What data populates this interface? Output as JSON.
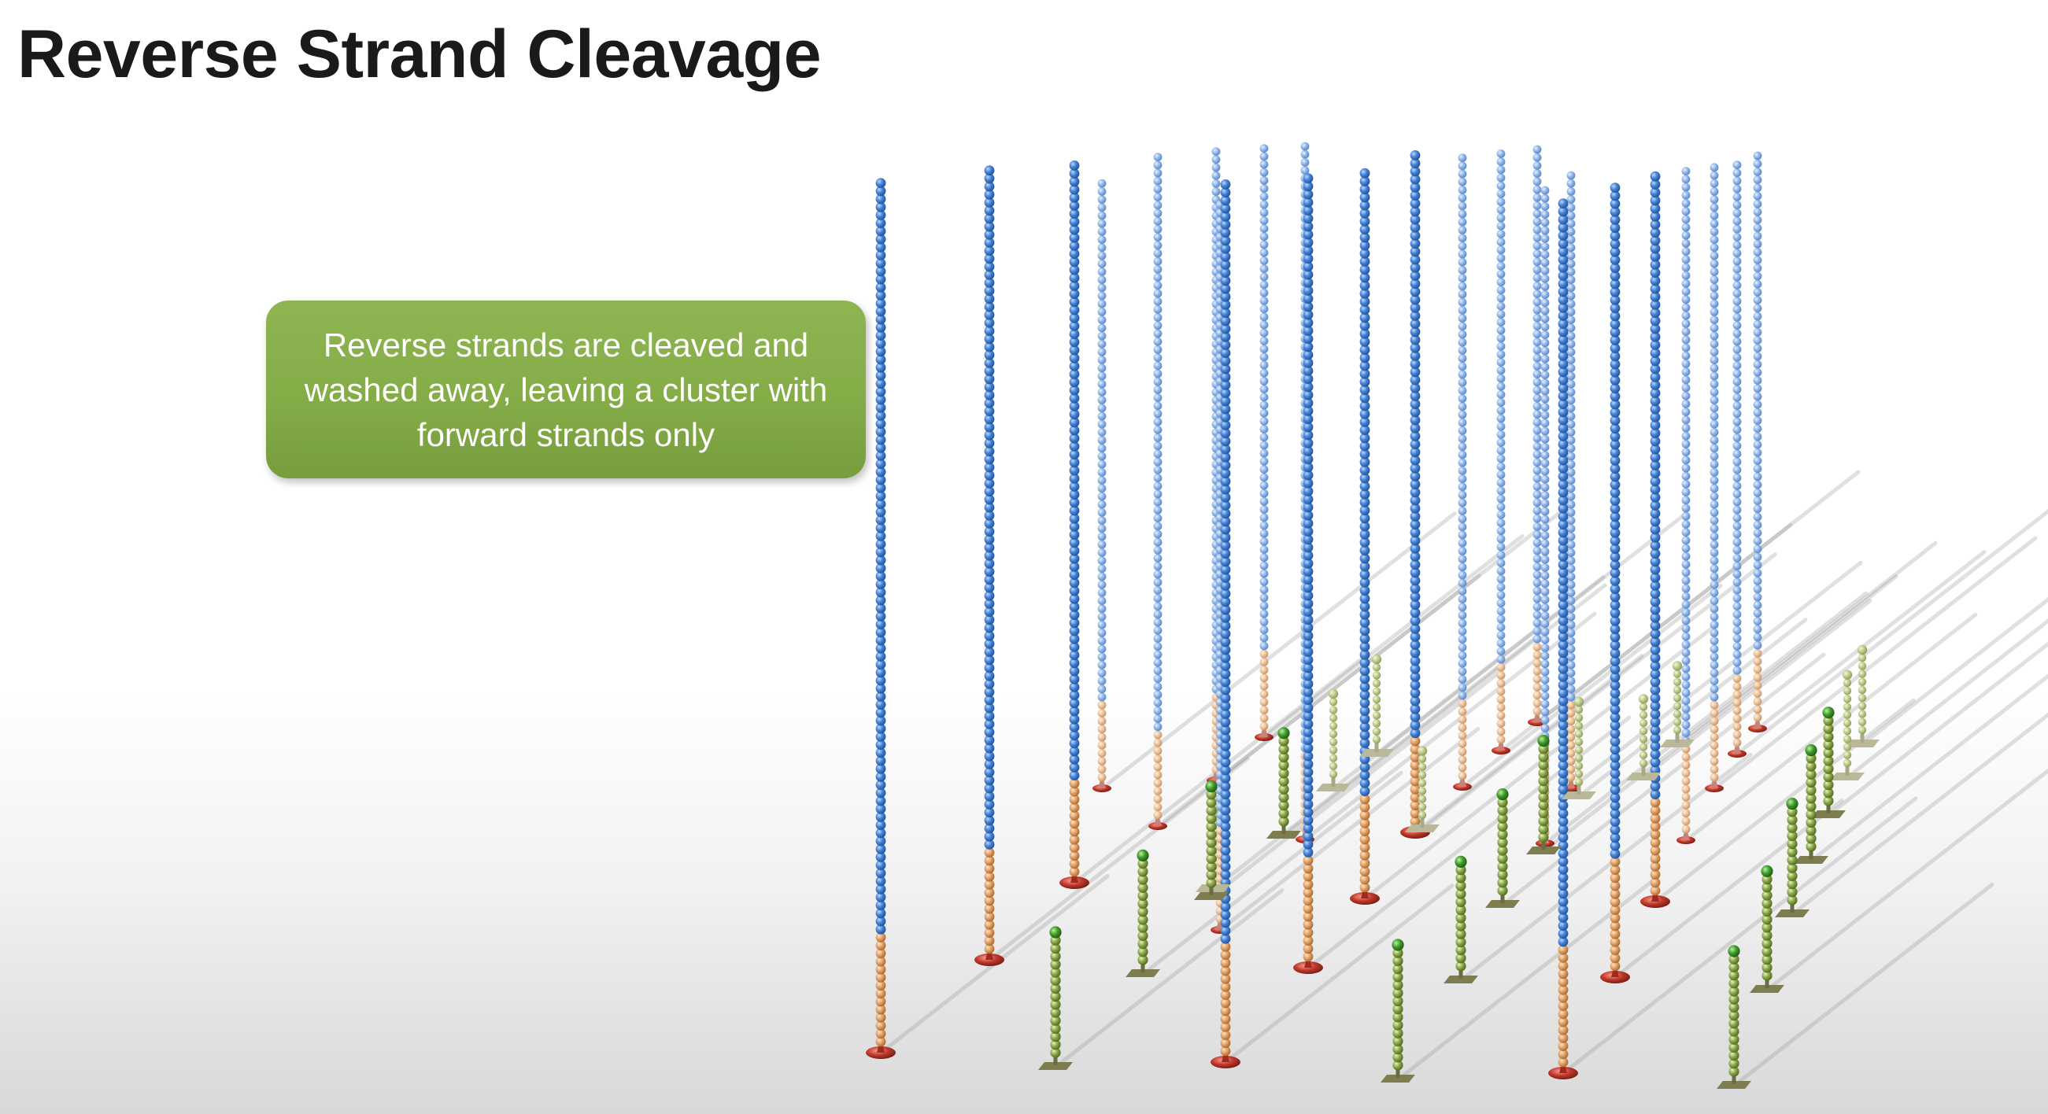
{
  "slide": {
    "title": "Reverse Strand Cleavage"
  },
  "callout": {
    "text": "Reverse strands are cleaved and washed away, leaving a cluster with forward strands only"
  },
  "colors": {
    "forward_strand": "#4a86d6",
    "adapter_segment": "#e0a066",
    "anchor_base": "#c0392b",
    "cleaved_stub": "#8aa64a",
    "stub_base": "#8a8a5a",
    "callout_background": "#84ac47",
    "flowcell_shadow": "#9a9a9a"
  },
  "strands": {
    "forward_strand_count": 25,
    "cleaved_stub_count": 22
  }
}
